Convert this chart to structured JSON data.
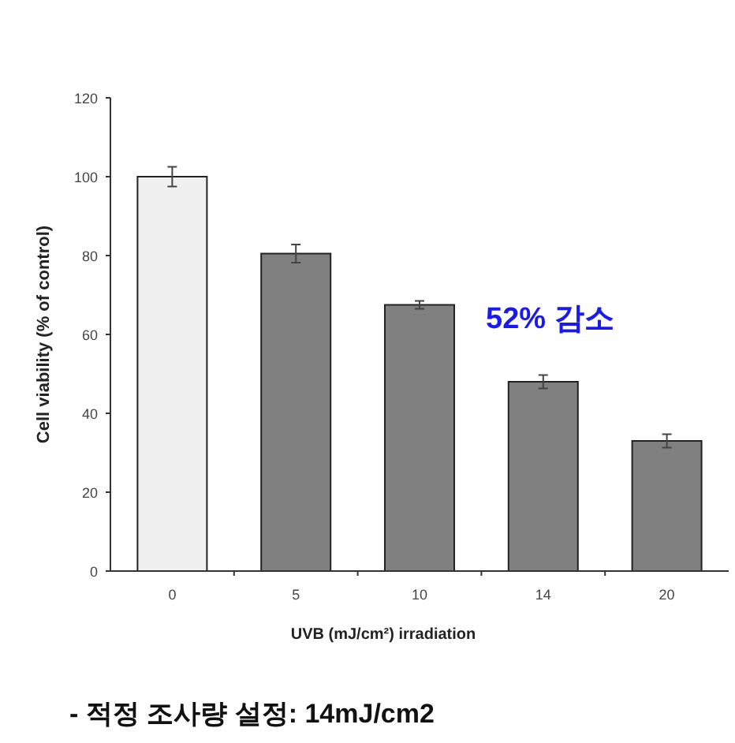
{
  "chart_data": {
    "type": "bar",
    "xlabel": "UVB (mJ/cm²) irradiation",
    "ylabel": "Cell viability (% of control)",
    "categories": [
      "0",
      "5",
      "10",
      "14",
      "20"
    ],
    "values": [
      100,
      80.5,
      67.5,
      48,
      33
    ],
    "errors": [
      2.5,
      2.3,
      1,
      1.7,
      1.7
    ],
    "colors": [
      "#f0f0f0",
      "#808080",
      "#808080",
      "#808080",
      "#808080"
    ],
    "ylim": [
      0,
      120
    ],
    "yticks": [
      0,
      20,
      40,
      60,
      80,
      100,
      120
    ],
    "annotations": [
      "52% 감소",
      "-   적정 조사량 설정: 14mJ/cm2"
    ]
  }
}
